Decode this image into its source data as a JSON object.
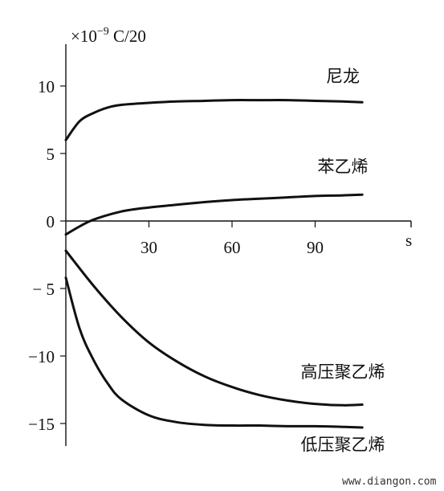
{
  "chart_data": {
    "type": "line",
    "unit_prefix": "×10",
    "unit_exponent": "−9",
    "unit_suffix": " C/20",
    "x_unit": "s",
    "xlim": [
      -7,
      110
    ],
    "ylim": [
      -16,
      13
    ],
    "x_ticks": [
      {
        "value": 30,
        "label": "30"
      },
      {
        "value": 60,
        "label": "60"
      },
      {
        "value": 90,
        "label": "90"
      }
    ],
    "y_ticks": [
      {
        "value": 10,
        "label": "10"
      },
      {
        "value": 5,
        "label": "5"
      },
      {
        "value": 0,
        "label": "0"
      },
      {
        "value": -5,
        "label": "− 5"
      },
      {
        "value": -10,
        "label": "−10"
      },
      {
        "value": -15,
        "label": "−15"
      }
    ],
    "series": [
      {
        "name": "尼龙",
        "label_at": [
          100,
          10.3
        ],
        "x": [
          0,
          5,
          10,
          15,
          20,
          30,
          40,
          50,
          60,
          70,
          80,
          90,
          100,
          107
        ],
        "values": [
          6.0,
          7.4,
          8.0,
          8.4,
          8.6,
          8.75,
          8.85,
          8.9,
          8.95,
          8.95,
          8.95,
          8.9,
          8.85,
          8.8
        ]
      },
      {
        "name": "苯乙烯",
        "label_at": [
          100,
          3.6
        ],
        "x": [
          0,
          5,
          10,
          20,
          30,
          40,
          50,
          60,
          70,
          80,
          90,
          100,
          107
        ],
        "values": [
          -1.0,
          -0.4,
          0.1,
          0.7,
          1.0,
          1.2,
          1.4,
          1.55,
          1.65,
          1.75,
          1.85,
          1.9,
          1.95
        ]
      },
      {
        "name": "高压聚乙烯",
        "label_at": [
          100,
          -11.6
        ],
        "x": [
          0,
          10,
          20,
          30,
          40,
          50,
          60,
          70,
          80,
          90,
          100,
          107
        ],
        "values": [
          -2.2,
          -4.8,
          -7.1,
          -9.0,
          -10.4,
          -11.5,
          -12.3,
          -12.9,
          -13.3,
          -13.55,
          -13.65,
          -13.6
        ]
      },
      {
        "name": "低压聚乙烯",
        "label_at": [
          100,
          -17.0
        ],
        "x": [
          0,
          5,
          10,
          15,
          20,
          30,
          40,
          50,
          60,
          70,
          80,
          90,
          100,
          107
        ],
        "values": [
          -4.2,
          -8.0,
          -10.3,
          -12.0,
          -13.2,
          -14.4,
          -14.9,
          -15.1,
          -15.15,
          -15.15,
          -15.2,
          -15.2,
          -15.25,
          -15.3
        ]
      }
    ]
  },
  "watermark": "www.diangon.com"
}
